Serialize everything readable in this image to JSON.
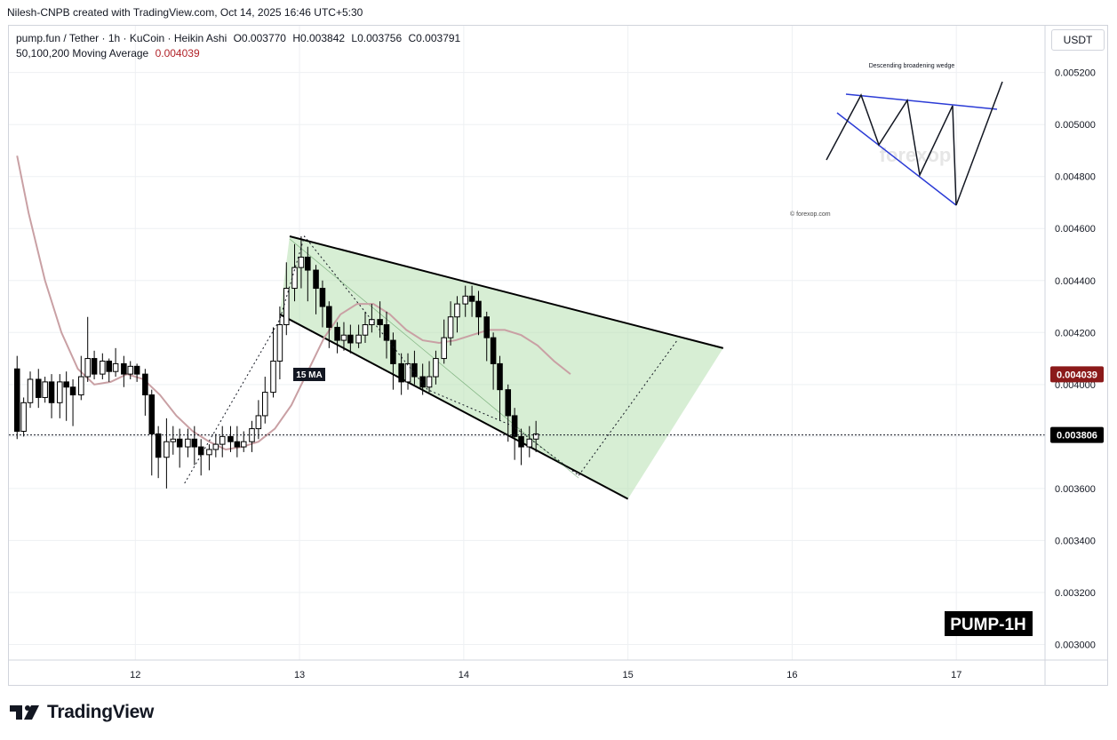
{
  "header": {
    "attribution": "Nilesh-CNPB created with TradingView.com, Oct 14, 2025 16:46 UTC+5:30"
  },
  "legend": {
    "symbol_line": "pump.fun / Tether · 1h · KuCoin · Heikin Ashi",
    "open_label": "O",
    "open": "0.003770",
    "high_label": "H",
    "high": "0.003842",
    "low_label": "L",
    "low": "0.003756",
    "close_label": "C",
    "close": "0.003791",
    "ma_label": "50,100,200 Moving Average",
    "ma_value": "0.004039"
  },
  "currency_button": "USDT",
  "footer": {
    "brand": "TradingView"
  },
  "colors": {
    "up": "#ffffff",
    "down": "#000000",
    "candle_border": "#000000",
    "ma": "#c9a0a4",
    "wedge_fill": "#b7e0b0",
    "wedge_line": "#000000",
    "ma_tag": "#8b1a1a",
    "price_tag": "#000000",
    "inset_lines": "#2b3bd6"
  },
  "chart_data": {
    "type": "candlestick",
    "x_axis": {
      "ticks": [
        "12",
        "13",
        "14",
        "15",
        "16",
        "17"
      ]
    },
    "y_axis": {
      "ticks": [
        "0.003000",
        "0.003200",
        "0.003400",
        "0.003600",
        "0.003800",
        "0.004000",
        "0.004200",
        "0.004400",
        "0.004600",
        "0.004800",
        "0.005000",
        "0.005200"
      ],
      "range": [
        0.00294,
        0.00538
      ]
    },
    "grid": true,
    "current_price": {
      "value": 0.003806,
      "label": "0.003806"
    },
    "ma_tag": {
      "value": 0.004039,
      "label": "0.004039"
    },
    "candles": [
      [
        11.28,
        0.00406,
        0.00382,
        0.00411,
        0.00379
      ],
      [
        11.32,
        0.00382,
        0.00393,
        0.00395,
        0.0038
      ],
      [
        11.36,
        0.00393,
        0.00402,
        0.00405,
        0.00391
      ],
      [
        11.41,
        0.00402,
        0.00395,
        0.00406,
        0.00391
      ],
      [
        11.45,
        0.00395,
        0.00401,
        0.00403,
        0.00393
      ],
      [
        11.49,
        0.00401,
        0.00393,
        0.00404,
        0.00387
      ],
      [
        11.54,
        0.00393,
        0.00401,
        0.00404,
        0.00387
      ],
      [
        11.58,
        0.00401,
        0.00399,
        0.00405,
        0.00386
      ],
      [
        11.62,
        0.00399,
        0.00396,
        0.00402,
        0.00384
      ],
      [
        11.67,
        0.00396,
        0.00403,
        0.00411,
        0.00394
      ],
      [
        11.71,
        0.00403,
        0.0041,
        0.00426,
        0.00401
      ],
      [
        11.75,
        0.0041,
        0.00404,
        0.00413,
        0.00402
      ],
      [
        11.8,
        0.00404,
        0.00409,
        0.00412,
        0.00402
      ],
      [
        11.84,
        0.00409,
        0.00405,
        0.0041,
        0.00401
      ],
      [
        11.88,
        0.00405,
        0.00408,
        0.00414,
        0.00403
      ],
      [
        11.93,
        0.00408,
        0.00404,
        0.00411,
        0.00399
      ],
      [
        11.97,
        0.00404,
        0.00407,
        0.00409,
        0.00402
      ],
      [
        12.01,
        0.00407,
        0.00404,
        0.00408,
        0.00401
      ],
      [
        12.06,
        0.00404,
        0.00396,
        0.00406,
        0.00388
      ],
      [
        12.1,
        0.00396,
        0.00381,
        0.00398,
        0.00365
      ],
      [
        12.14,
        0.00381,
        0.00372,
        0.00384,
        0.00364
      ],
      [
        12.19,
        0.00372,
        0.00378,
        0.00387,
        0.0036
      ],
      [
        12.23,
        0.00378,
        0.00379,
        0.00384,
        0.00373
      ],
      [
        12.27,
        0.00379,
        0.00376,
        0.00383,
        0.00368
      ],
      [
        12.32,
        0.00376,
        0.00379,
        0.00383,
        0.00372
      ],
      [
        12.36,
        0.00379,
        0.00376,
        0.00384,
        0.00369
      ],
      [
        12.4,
        0.00376,
        0.00373,
        0.00379,
        0.00365
      ],
      [
        12.45,
        0.00373,
        0.00375,
        0.00377,
        0.00367
      ],
      [
        12.49,
        0.00375,
        0.00377,
        0.00381,
        0.00372
      ],
      [
        12.53,
        0.00377,
        0.0038,
        0.00384,
        0.00372
      ],
      [
        12.58,
        0.0038,
        0.00378,
        0.00384,
        0.00374
      ],
      [
        12.62,
        0.00378,
        0.00376,
        0.00384,
        0.00372
      ],
      [
        12.66,
        0.00376,
        0.00378,
        0.00382,
        0.00374
      ],
      [
        12.71,
        0.00378,
        0.00383,
        0.00386,
        0.00374
      ],
      [
        12.75,
        0.00383,
        0.00388,
        0.00394,
        0.00379
      ],
      [
        12.79,
        0.00388,
        0.00397,
        0.00403,
        0.00385
      ],
      [
        12.84,
        0.00397,
        0.00409,
        0.00422,
        0.00395
      ],
      [
        12.88,
        0.00409,
        0.00423,
        0.0043,
        0.00402
      ],
      [
        12.92,
        0.00423,
        0.00437,
        0.00447,
        0.00419
      ],
      [
        12.97,
        0.00437,
        0.00445,
        0.00454,
        0.00432
      ],
      [
        13.01,
        0.00445,
        0.00449,
        0.00457,
        0.00437
      ],
      [
        13.05,
        0.00449,
        0.00444,
        0.00453,
        0.00432
      ],
      [
        13.1,
        0.00444,
        0.00437,
        0.00446,
        0.00427
      ],
      [
        13.14,
        0.00437,
        0.0043,
        0.0044,
        0.00422
      ],
      [
        13.18,
        0.0043,
        0.00422,
        0.00432,
        0.00414
      ],
      [
        13.23,
        0.00422,
        0.00417,
        0.00424,
        0.00412
      ],
      [
        13.27,
        0.00417,
        0.00419,
        0.00424,
        0.00413
      ],
      [
        13.31,
        0.00419,
        0.00416,
        0.00423,
        0.00412
      ],
      [
        13.36,
        0.00416,
        0.00419,
        0.00423,
        0.00414
      ],
      [
        13.4,
        0.00419,
        0.00423,
        0.00428,
        0.00416
      ],
      [
        13.44,
        0.00423,
        0.00425,
        0.00431,
        0.0042
      ],
      [
        13.49,
        0.00425,
        0.00423,
        0.00432,
        0.00418
      ],
      [
        13.53,
        0.00423,
        0.00417,
        0.00428,
        0.0041
      ],
      [
        13.57,
        0.00417,
        0.00408,
        0.0042,
        0.00398
      ],
      [
        13.62,
        0.00408,
        0.00401,
        0.00412,
        0.00396
      ],
      [
        13.66,
        0.00401,
        0.00408,
        0.00412,
        0.00398
      ],
      [
        13.7,
        0.00408,
        0.00403,
        0.00413,
        0.004
      ],
      [
        13.75,
        0.00403,
        0.00399,
        0.00408,
        0.00396
      ],
      [
        13.79,
        0.00399,
        0.00403,
        0.00409,
        0.00397
      ],
      [
        13.83,
        0.00403,
        0.0041,
        0.00413,
        0.004
      ],
      [
        13.88,
        0.0041,
        0.00418,
        0.00425,
        0.00408
      ],
      [
        13.92,
        0.00418,
        0.00426,
        0.00432,
        0.00415
      ],
      [
        13.96,
        0.00426,
        0.00431,
        0.00434,
        0.0042
      ],
      [
        14.01,
        0.00431,
        0.00434,
        0.00438,
        0.00426
      ],
      [
        14.05,
        0.00434,
        0.00432,
        0.00438,
        0.00426
      ],
      [
        14.09,
        0.00432,
        0.00426,
        0.00436,
        0.00419
      ],
      [
        14.14,
        0.00426,
        0.00418,
        0.00428,
        0.00409
      ],
      [
        14.18,
        0.00418,
        0.00408,
        0.0042,
        0.00398
      ],
      [
        14.22,
        0.00408,
        0.00398,
        0.00411,
        0.00386
      ],
      [
        14.27,
        0.00398,
        0.00388,
        0.004,
        0.00378
      ],
      [
        14.31,
        0.00388,
        0.0038,
        0.00391,
        0.00371
      ],
      [
        14.35,
        0.0038,
        0.00376,
        0.00383,
        0.00369
      ],
      [
        14.4,
        0.00376,
        0.00379,
        0.00384,
        0.00372
      ],
      [
        14.44,
        0.00379,
        0.00381,
        0.00386,
        0.00374
      ]
    ],
    "moving_average": [
      [
        11.28,
        0.00488
      ],
      [
        11.35,
        0.00466
      ],
      [
        11.45,
        0.0044
      ],
      [
        11.55,
        0.0042
      ],
      [
        11.65,
        0.00406
      ],
      [
        11.75,
        0.004
      ],
      [
        11.85,
        0.00401
      ],
      [
        11.95,
        0.00404
      ],
      [
        12.05,
        0.00402
      ],
      [
        12.15,
        0.00396
      ],
      [
        12.25,
        0.00388
      ],
      [
        12.35,
        0.00382
      ],
      [
        12.45,
        0.00378
      ],
      [
        12.55,
        0.00375
      ],
      [
        12.65,
        0.00376
      ],
      [
        12.75,
        0.00378
      ],
      [
        12.85,
        0.00383
      ],
      [
        12.95,
        0.00392
      ],
      [
        13.05,
        0.00405
      ],
      [
        13.15,
        0.00418
      ],
      [
        13.25,
        0.00427
      ],
      [
        13.35,
        0.00431
      ],
      [
        13.45,
        0.00431
      ],
      [
        13.55,
        0.00427
      ],
      [
        13.65,
        0.00421
      ],
      [
        13.75,
        0.00417
      ],
      [
        13.85,
        0.00416
      ],
      [
        13.95,
        0.00417
      ],
      [
        14.05,
        0.00419
      ],
      [
        14.15,
        0.00421
      ],
      [
        14.25,
        0.00421
      ],
      [
        14.35,
        0.00419
      ],
      [
        14.45,
        0.00415
      ],
      [
        14.55,
        0.00409
      ],
      [
        14.65,
        0.00404
      ]
    ],
    "annotations": {
      "ma_label": "15 MA",
      "watermark": "PUMP-1H",
      "inset_title": "Descending broadening wedge",
      "inset_credit": "© forexop.com",
      "inset_watermark": "forexop"
    }
  }
}
